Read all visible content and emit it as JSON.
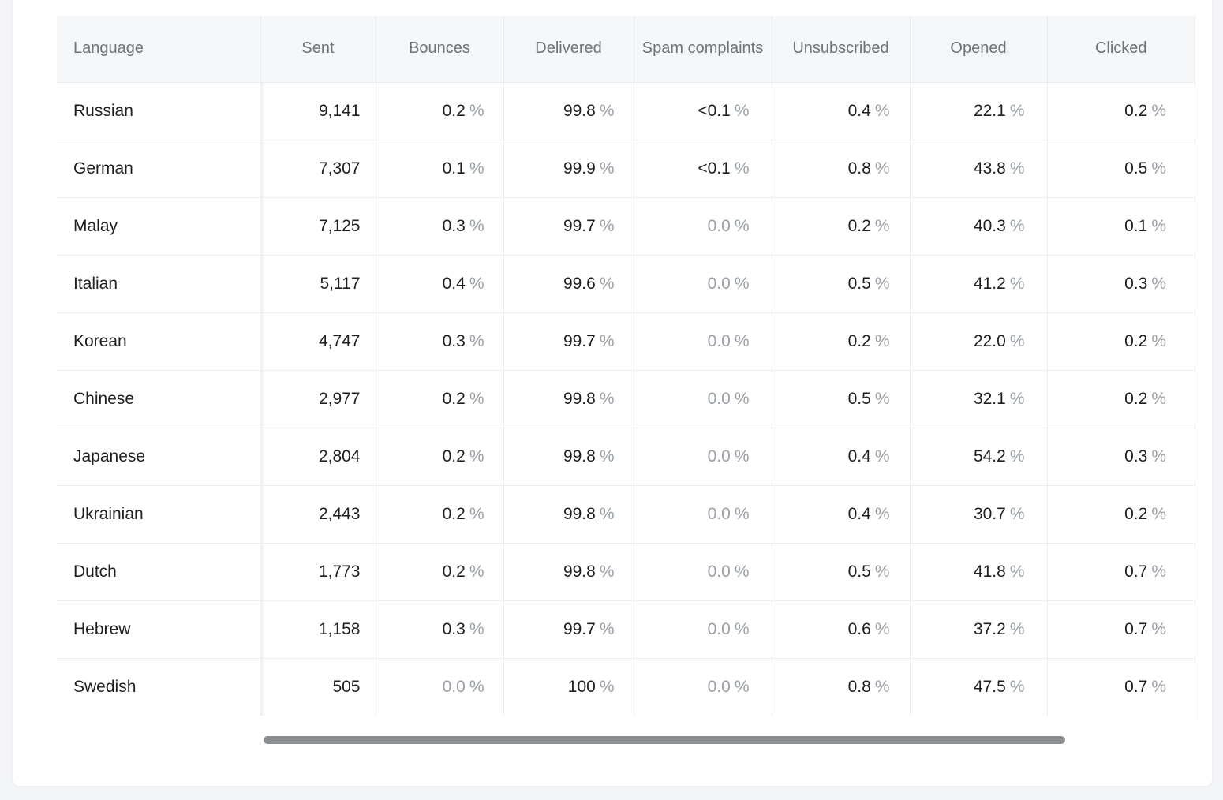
{
  "table": {
    "headers": {
      "language": "Language",
      "sent": "Sent",
      "bounces": "Bounces",
      "delivered": "Delivered",
      "spam": "Spam complaints",
      "unsubscribed": "Unsubscribed",
      "opened": "Opened",
      "clicked": "Clicked"
    },
    "percent_suffix": "%",
    "rows": [
      {
        "language": "Russian",
        "sent": "9,141",
        "bounces": "0.2",
        "delivered": "99.8",
        "spam": "<0.1",
        "unsubscribed": "0.4",
        "opened": "22.1",
        "clicked": "0.2"
      },
      {
        "language": "German",
        "sent": "7,307",
        "bounces": "0.1",
        "delivered": "99.9",
        "spam": "<0.1",
        "unsubscribed": "0.8",
        "opened": "43.8",
        "clicked": "0.5"
      },
      {
        "language": "Malay",
        "sent": "7,125",
        "bounces": "0.3",
        "delivered": "99.7",
        "spam": "0.0",
        "unsubscribed": "0.2",
        "opened": "40.3",
        "clicked": "0.1"
      },
      {
        "language": "Italian",
        "sent": "5,117",
        "bounces": "0.4",
        "delivered": "99.6",
        "spam": "0.0",
        "unsubscribed": "0.5",
        "opened": "41.2",
        "clicked": "0.3"
      },
      {
        "language": "Korean",
        "sent": "4,747",
        "bounces": "0.3",
        "delivered": "99.7",
        "spam": "0.0",
        "unsubscribed": "0.2",
        "opened": "22.0",
        "clicked": "0.2"
      },
      {
        "language": "Chinese",
        "sent": "2,977",
        "bounces": "0.2",
        "delivered": "99.8",
        "spam": "0.0",
        "unsubscribed": "0.5",
        "opened": "32.1",
        "clicked": "0.2"
      },
      {
        "language": "Japanese",
        "sent": "2,804",
        "bounces": "0.2",
        "delivered": "99.8",
        "spam": "0.0",
        "unsubscribed": "0.4",
        "opened": "54.2",
        "clicked": "0.3"
      },
      {
        "language": "Ukrainian",
        "sent": "2,443",
        "bounces": "0.2",
        "delivered": "99.8",
        "spam": "0.0",
        "unsubscribed": "0.4",
        "opened": "30.7",
        "clicked": "0.2"
      },
      {
        "language": "Dutch",
        "sent": "1,773",
        "bounces": "0.2",
        "delivered": "99.8",
        "spam": "0.0",
        "unsubscribed": "0.5",
        "opened": "41.8",
        "clicked": "0.7"
      },
      {
        "language": "Hebrew",
        "sent": "1,158",
        "bounces": "0.3",
        "delivered": "99.7",
        "spam": "0.0",
        "unsubscribed": "0.6",
        "opened": "37.2",
        "clicked": "0.7"
      },
      {
        "language": "Swedish",
        "sent": "505",
        "bounces": "0.0",
        "delivered": "100",
        "spam": "0.0",
        "unsubscribed": "0.8",
        "opened": "47.5",
        "clicked": "0.7"
      }
    ]
  },
  "colors": {
    "header_bg": "#f5f6f7",
    "header_text": "#6e7479",
    "body_text": "#1d1f22",
    "muted_text": "#9aa0a6",
    "scrollbar_thumb": "#8c8f92"
  }
}
